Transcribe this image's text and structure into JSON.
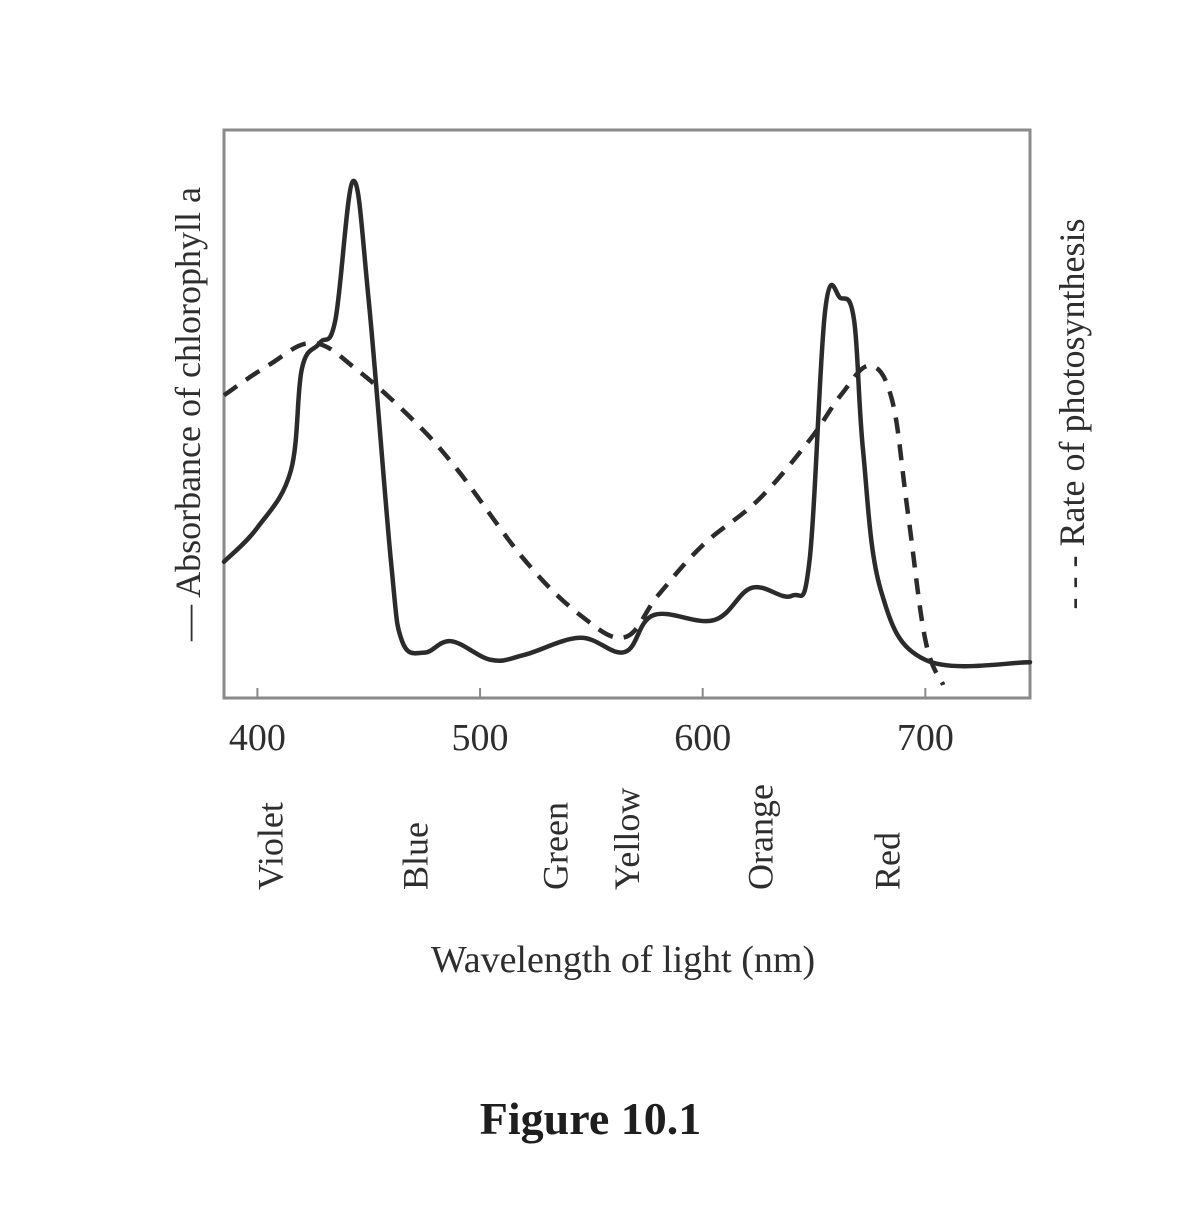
{
  "chart_data": {
    "type": "line",
    "title": "",
    "caption": "Figure 10.1",
    "xlabel": "Wavelength of light (nm)",
    "ylabel_left": "Absorbance of chlorophyll a",
    "ylabel_left_legend": "—",
    "ylabel_right": "Rate of photosynthesis",
    "ylabel_right_legend": "- - -",
    "xlim": [
      385,
      747
    ],
    "ylim": [
      0,
      1
    ],
    "xticks": [
      400,
      500,
      600,
      700
    ],
    "xtick_labels": [
      "400",
      "500",
      "600",
      "700"
    ],
    "yticks": [],
    "grid": false,
    "legend_position": "axis-labels",
    "color_bands": [
      {
        "label": "Violet",
        "x": 405
      },
      {
        "label": "Blue",
        "x": 470
      },
      {
        "label": "Green",
        "x": 533
      },
      {
        "label": "Yellow",
        "x": 565
      },
      {
        "label": "Orange",
        "x": 625
      },
      {
        "label": "Red",
        "x": 682
      }
    ],
    "series": [
      {
        "name": "Absorbance of chlorophyll a",
        "style": "solid",
        "x": [
          385,
          400,
          415,
          420,
          428,
          435,
          443,
          450,
          460,
          465,
          475,
          487,
          505,
          520,
          545,
          565,
          578,
          605,
          622,
          640,
          648,
          655,
          662,
          668,
          672,
          680,
          700,
          747
        ],
        "values": [
          0.24,
          0.3,
          0.4,
          0.58,
          0.625,
          0.665,
          0.91,
          0.7,
          0.24,
          0.1,
          0.08,
          0.1,
          0.067,
          0.076,
          0.106,
          0.081,
          0.146,
          0.137,
          0.194,
          0.18,
          0.243,
          0.683,
          0.704,
          0.665,
          0.437,
          0.19,
          0.067,
          0.063
        ]
      },
      {
        "name": "Rate of photosynthesis",
        "style": "dashed",
        "x": [
          385,
          405,
          425,
          445,
          470,
          490,
          520,
          545,
          565,
          580,
          600,
          625,
          648,
          662,
          675,
          685,
          692,
          700,
          708
        ],
        "values": [
          0.533,
          0.586,
          0.625,
          0.577,
          0.489,
          0.401,
          0.243,
          0.146,
          0.107,
          0.181,
          0.269,
          0.349,
          0.454,
          0.533,
          0.585,
          0.525,
          0.331,
          0.102,
          0.023
        ]
      }
    ],
    "colors": {
      "line": "#2b2b2b",
      "axis": "#7a7a7a",
      "text": "#2e2e2e"
    }
  }
}
